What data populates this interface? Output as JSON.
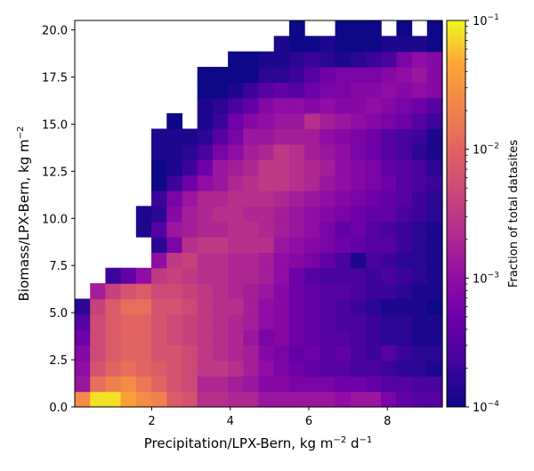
{
  "chart_data": {
    "type": "heatmap",
    "xlabel": "Precipitation/LPX-Bern,  kg m",
    "xlabel_sup": "−2",
    "xlabel_tail": " d",
    "xlabel_sup2": "−1",
    "ylabel": "Biomass/LPX-Bern,  kg m",
    "ylabel_sup": "−2",
    "xlim": [
      0.04,
      9.4
    ],
    "ylim": [
      0,
      20.5
    ],
    "x_ticks": [
      2,
      4,
      6,
      8
    ],
    "x_tick_labels": [
      "2",
      "4",
      "6",
      "8"
    ],
    "y_ticks": [
      0,
      2.5,
      5,
      7.5,
      10,
      12.5,
      15,
      17.5,
      20
    ],
    "y_tick_labels": [
      "0.0",
      "2.5",
      "5.0",
      "7.5",
      "10.0",
      "12.5",
      "15.0",
      "17.5",
      "20.0"
    ],
    "x_bins": 24,
    "y_bins": 25,
    "x_bin_width": 0.39,
    "y_bin_width": 0.82,
    "colorbar": {
      "label": "Fraction of total datasites",
      "scale": "log",
      "range": [
        0.0001,
        0.1
      ],
      "colormap": "plasma",
      "ticks": [
        0.0001,
        0.001,
        0.01,
        0.1
      ],
      "tick_base": "10",
      "tick_exponents": [
        "−4",
        "−3",
        "−2",
        "−1"
      ]
    },
    "log10_values": [
      [
        -1.6,
        -1.1,
        -1.1,
        -1.4,
        -1.6,
        -1.7,
        -2.1,
        -2.2,
        -2.6,
        -2.6,
        -2.7,
        -2.7,
        -2.9,
        -2.9,
        -2.9,
        -2.9,
        -2.9,
        -3.0,
        -2.9,
        -2.9,
        -3.2,
        -3.4,
        -3.5,
        -3.5
      ],
      [
        -2.9,
        -1.9,
        -1.7,
        -1.6,
        -1.8,
        -2.0,
        -2.2,
        -2.3,
        -2.7,
        -2.7,
        -2.8,
        -2.9,
        -3.1,
        -3.1,
        -3.2,
        -3.2,
        -3.2,
        -3.3,
        -3.3,
        -3.4,
        -3.5,
        -3.5,
        -3.6,
        -3.6
      ],
      [
        -3.0,
        -2.2,
        -2.0,
        -1.9,
        -2.0,
        -2.1,
        -2.2,
        -2.3,
        -2.5,
        -2.5,
        -2.6,
        -2.8,
        -3.0,
        -3.2,
        -3.3,
        -3.4,
        -3.5,
        -3.5,
        -3.6,
        -3.6,
        -3.7,
        -3.8,
        -3.8,
        -3.9
      ],
      [
        -3.1,
        -2.3,
        -2.1,
        -2.0,
        -2.0,
        -2.2,
        -2.2,
        -2.3,
        -2.5,
        -2.6,
        -2.7,
        -2.8,
        -3.1,
        -3.2,
        -3.4,
        -3.3,
        -3.5,
        -3.4,
        -3.6,
        -3.7,
        -3.5,
        -3.7,
        -3.8,
        -3.8
      ],
      [
        -3.3,
        -2.3,
        -2.1,
        -2.0,
        -2.0,
        -2.2,
        -2.3,
        -2.4,
        -2.5,
        -2.6,
        -2.7,
        -2.9,
        -3.2,
        -3.1,
        -3.3,
        -3.4,
        -3.5,
        -3.5,
        -3.6,
        -3.7,
        -3.8,
        -3.8,
        -3.9,
        -3.9
      ],
      [
        -3.5,
        -2.3,
        -2.1,
        -2.0,
        -2.0,
        -2.2,
        -2.3,
        -2.4,
        -2.5,
        -2.6,
        -2.7,
        -2.8,
        -3.0,
        -3.1,
        -3.3,
        -3.4,
        -3.5,
        -3.6,
        -3.6,
        -3.7,
        -3.8,
        -3.8,
        -3.9,
        -3.9
      ],
      [
        -3.8,
        -2.4,
        -2.1,
        -1.9,
        -1.9,
        -2.2,
        -2.2,
        -2.3,
        -2.5,
        -2.6,
        -2.6,
        -2.8,
        -3.0,
        -3.1,
        -3.3,
        -3.4,
        -3.5,
        -3.6,
        -3.7,
        -3.8,
        -3.9,
        -3.9,
        -3.9,
        -4.0
      ],
      [
        null,
        -2.8,
        -2.4,
        -2.2,
        -2.1,
        -2.3,
        -2.3,
        -2.4,
        -2.5,
        -2.6,
        -2.7,
        -2.8,
        -2.9,
        -3.1,
        -3.3,
        -3.4,
        -3.5,
        -3.5,
        -3.6,
        -3.7,
        -3.7,
        -3.8,
        -3.9,
        -3.9
      ],
      [
        null,
        null,
        -3.7,
        -3.4,
        -3.0,
        -2.5,
        -2.4,
        -2.5,
        -2.6,
        -2.6,
        -2.7,
        -2.7,
        -2.8,
        -3.0,
        -3.3,
        -3.5,
        -3.6,
        -3.6,
        -3.6,
        -3.7,
        -3.6,
        -3.7,
        -3.8,
        -3.9
      ],
      [
        null,
        null,
        null,
        null,
        null,
        -3.0,
        -2.5,
        -2.4,
        -2.6,
        -2.6,
        -2.7,
        -2.7,
        -2.8,
        -3.0,
        -3.1,
        -3.2,
        -3.4,
        -3.6,
        -3.9,
        -3.6,
        -3.7,
        -3.8,
        -3.8,
        -3.9
      ],
      [
        null,
        null,
        null,
        null,
        null,
        -3.8,
        -3.2,
        -2.6,
        -2.5,
        -2.5,
        -2.6,
        -2.6,
        -2.6,
        -2.9,
        -3.0,
        -3.1,
        -3.2,
        -3.3,
        -3.4,
        -3.5,
        -3.5,
        -3.7,
        -3.8,
        -3.9
      ],
      [
        null,
        null,
        null,
        null,
        -3.9,
        -3.5,
        -2.9,
        -2.8,
        -2.7,
        -2.7,
        -2.6,
        -2.6,
        -2.7,
        -2.8,
        -2.9,
        -3.0,
        -3.2,
        -3.4,
        -3.3,
        -3.5,
        -3.6,
        -3.7,
        -3.8,
        -3.9
      ],
      [
        null,
        null,
        null,
        null,
        -3.9,
        -3.8,
        -3.1,
        -2.8,
        -2.7,
        -2.6,
        -2.6,
        -2.7,
        -2.7,
        -2.8,
        -2.9,
        -3.0,
        -3.1,
        -3.2,
        -3.3,
        -3.4,
        -3.4,
        -3.6,
        -3.7,
        -3.8
      ],
      [
        null,
        null,
        null,
        null,
        null,
        -3.7,
        -3.2,
        -2.9,
        -2.7,
        -2.7,
        -2.6,
        -2.6,
        -2.6,
        -2.7,
        -2.8,
        -2.9,
        -3.0,
        -3.1,
        -3.2,
        -3.3,
        -3.4,
        -3.5,
        -3.7,
        -3.8
      ],
      [
        null,
        null,
        null,
        null,
        null,
        -4.0,
        -3.7,
        -3.3,
        -3.0,
        -2.9,
        -2.7,
        -2.6,
        -2.5,
        -2.5,
        -2.6,
        -2.7,
        -2.9,
        -3.0,
        -3.1,
        -3.2,
        -3.3,
        -3.5,
        -3.6,
        -3.7
      ],
      [
        null,
        null,
        null,
        null,
        null,
        -4.0,
        -3.9,
        -3.7,
        -3.3,
        -2.9,
        -2.8,
        -2.7,
        -2.5,
        -2.5,
        -2.6,
        -2.7,
        -2.8,
        -3.0,
        -3.1,
        -3.2,
        -3.4,
        -3.5,
        -3.6,
        -3.8
      ],
      [
        null,
        null,
        null,
        null,
        null,
        -3.9,
        -3.9,
        -3.8,
        -3.6,
        -3.2,
        -3.0,
        -2.8,
        -2.7,
        -2.5,
        -2.6,
        -2.8,
        -2.9,
        -3.0,
        -3.2,
        -3.3,
        -3.5,
        -3.6,
        -3.8,
        -3.9
      ],
      [
        null,
        null,
        null,
        null,
        null,
        -3.9,
        -3.9,
        -3.9,
        -3.8,
        -3.5,
        -3.2,
        -2.9,
        -2.9,
        -2.8,
        -2.8,
        -2.8,
        -3.0,
        -3.1,
        -3.2,
        -3.3,
        -3.5,
        -3.6,
        -3.7,
        -3.9
      ],
      [
        null,
        null,
        null,
        null,
        null,
        null,
        -4.0,
        null,
        -3.9,
        -3.7,
        -3.3,
        -3.1,
        -3.0,
        -2.9,
        -2.9,
        -2.6,
        -2.8,
        -2.9,
        -3.0,
        -3.1,
        -3.2,
        -3.3,
        -3.5,
        -3.7
      ],
      [
        null,
        null,
        null,
        null,
        null,
        null,
        null,
        null,
        -3.9,
        -3.8,
        -3.6,
        -3.4,
        -3.1,
        -3.0,
        -3.0,
        -3.1,
        -3.0,
        -3.1,
        -3.1,
        -3.0,
        -3.1,
        -3.2,
        -3.3,
        -3.5
      ],
      [
        null,
        null,
        null,
        null,
        null,
        null,
        null,
        null,
        -4.0,
        -4.0,
        -3.9,
        -3.7,
        -3.5,
        -3.4,
        -3.5,
        -3.3,
        -3.2,
        -3.2,
        -3.1,
        -3.1,
        -3.0,
        -3.1,
        -3.0,
        -3.1
      ],
      [
        null,
        null,
        null,
        null,
        null,
        null,
        null,
        null,
        -4.0,
        -4.0,
        -4.0,
        -4.0,
        -3.8,
        -3.8,
        -3.7,
        -3.5,
        -3.3,
        -3.2,
        -3.2,
        -3.2,
        -3.1,
        -3.0,
        -2.9,
        -3.1
      ],
      [
        null,
        null,
        null,
        null,
        null,
        null,
        null,
        null,
        null,
        null,
        -4.0,
        -4.0,
        -3.9,
        -3.9,
        -3.8,
        -3.7,
        -3.8,
        -3.9,
        -3.8,
        -3.7,
        -3.6,
        -3.2,
        -3.0,
        -3.1
      ],
      [
        null,
        null,
        null,
        null,
        null,
        null,
        null,
        null,
        null,
        null,
        null,
        null,
        null,
        -3.9,
        -4.0,
        -4.0,
        -3.9,
        -4.0,
        -4.0,
        -4.0,
        -3.9,
        -3.9,
        -3.9,
        -4.0
      ],
      [
        null,
        null,
        null,
        null,
        null,
        null,
        null,
        null,
        null,
        null,
        null,
        null,
        null,
        null,
        -4.0,
        null,
        null,
        -4.0,
        -4.0,
        -4.0,
        null,
        -4.0,
        null,
        -4.0
      ]
    ]
  }
}
